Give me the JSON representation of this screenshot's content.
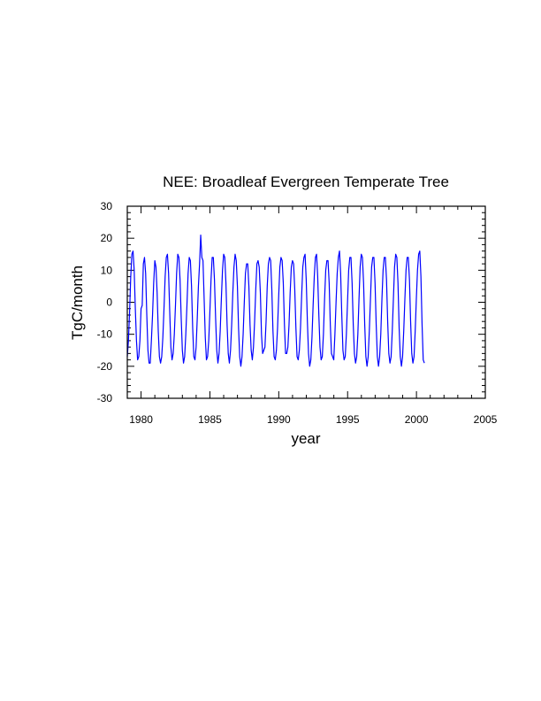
{
  "chart_data": {
    "type": "line",
    "title": "NEE: Broadleaf Evergreen Temperate Tree",
    "xlabel": "year",
    "ylabel": "TgC/month",
    "xlim": [
      1979,
      2005
    ],
    "ylim": [
      -30,
      30
    ],
    "x_ticks": [
      1980,
      1985,
      1990,
      1995,
      2000,
      2005
    ],
    "y_ticks": [
      -30,
      -20,
      -10,
      0,
      10,
      20,
      30
    ],
    "grid": false,
    "colors": {
      "series": "#0000ff",
      "axes": "#000000"
    },
    "series": [
      {
        "start_year": 1979,
        "step_years": 0.0833,
        "values": [
          -17,
          -12,
          -3,
          8,
          15,
          16,
          10,
          -2,
          -12,
          -18,
          -17,
          -12,
          -2,
          -1,
          12,
          14,
          9,
          -4,
          -15,
          -19,
          -19,
          -12,
          -4,
          6,
          13,
          11,
          3,
          -9,
          -17,
          -19,
          -17,
          -11,
          -2,
          8,
          14,
          15,
          9,
          -3,
          -14,
          -18,
          -16,
          -10,
          -1,
          9,
          15,
          14,
          7,
          -5,
          -15,
          -19,
          -17,
          -10,
          -1,
          9,
          14,
          13,
          5,
          -8,
          -17,
          -18,
          -14,
          -5,
          5,
          12,
          21,
          14,
          13,
          1,
          -11,
          -18,
          -17,
          -12,
          -3,
          7,
          14,
          14,
          7,
          -5,
          -15,
          -19,
          -16,
          -9,
          1,
          10,
          15,
          14,
          6,
          -7,
          -16,
          -19,
          -15,
          -7,
          3,
          11,
          15,
          13,
          5,
          -8,
          -17,
          -20,
          -17,
          -10,
          0,
          9,
          12,
          12,
          5,
          -7,
          -15,
          -18,
          -14,
          -6,
          4,
          12,
          13,
          11,
          3,
          -10,
          -16,
          -15,
          -14,
          -6,
          5,
          12,
          14,
          13,
          4,
          -9,
          -17,
          -18,
          -15,
          -8,
          2,
          11,
          14,
          13,
          6,
          -7,
          -16,
          -16,
          -14,
          -7,
          3,
          11,
          13,
          12,
          4,
          -8,
          -17,
          -18,
          -15,
          -8,
          2,
          11,
          14,
          15,
          7,
          -6,
          -16,
          -20,
          -18,
          -11,
          -1,
          8,
          14,
          15,
          8,
          -4,
          -14,
          -18,
          -17,
          -10,
          1,
          10,
          13,
          13,
          6,
          -7,
          -16,
          -17,
          -18,
          -10,
          0,
          9,
          14,
          16,
          9,
          -4,
          -15,
          -18,
          -17,
          -10,
          0,
          10,
          14,
          14,
          6,
          -7,
          -16,
          -19,
          -17,
          -10,
          1,
          11,
          15,
          14,
          6,
          -7,
          -17,
          -20,
          -17,
          -9,
          1,
          11,
          14,
          14,
          6,
          -7,
          -17,
          -20,
          -17,
          -10,
          1,
          10,
          14,
          14,
          7,
          -6,
          -16,
          -19,
          -17,
          -9,
          1,
          11,
          15,
          14,
          6,
          -8,
          -17,
          -20,
          -17,
          -9,
          1,
          10,
          14,
          14,
          7,
          -6,
          -16,
          -19,
          -17,
          -9,
          1,
          10,
          15,
          16,
          8,
          -7,
          -18,
          -19
        ]
      }
    ]
  }
}
